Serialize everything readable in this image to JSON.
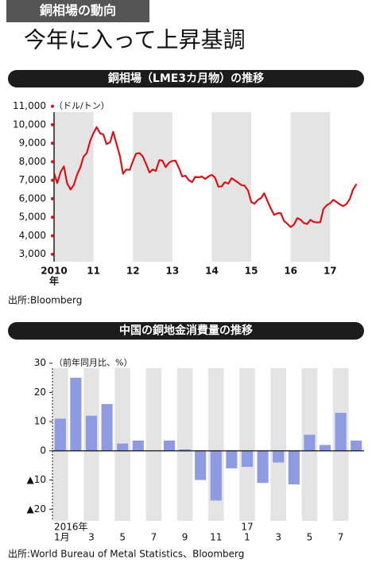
{
  "header": {
    "tag": "銅相場の動向",
    "title": "今年に入って上昇基調"
  },
  "chart_data": [
    {
      "type": "line",
      "title": "銅相場（LME3カ月物）の推移",
      "y_unit_label": "（ドル/トン）",
      "x_unit_label": "年",
      "x": [
        2010,
        2010.08,
        2010.17,
        2010.25,
        2010.33,
        2010.42,
        2010.5,
        2010.58,
        2010.67,
        2010.75,
        2010.83,
        2010.92,
        2011,
        2011.08,
        2011.17,
        2011.25,
        2011.33,
        2011.42,
        2011.5,
        2011.58,
        2011.67,
        2011.75,
        2011.83,
        2011.92,
        2012,
        2012.08,
        2012.17,
        2012.25,
        2012.33,
        2012.42,
        2012.5,
        2012.58,
        2012.67,
        2012.75,
        2012.83,
        2012.92,
        2013,
        2013.08,
        2013.17,
        2013.25,
        2013.33,
        2013.42,
        2013.5,
        2013.58,
        2013.67,
        2013.75,
        2013.83,
        2013.92,
        2014,
        2014.08,
        2014.17,
        2014.25,
        2014.33,
        2014.42,
        2014.5,
        2014.58,
        2014.67,
        2014.75,
        2014.83,
        2014.92,
        2015,
        2015.08,
        2015.17,
        2015.25,
        2015.33,
        2015.42,
        2015.5,
        2015.58,
        2015.67,
        2015.75,
        2015.83,
        2015.92,
        2016,
        2016.08,
        2016.17,
        2016.25,
        2016.33,
        2016.42,
        2016.5,
        2016.58,
        2016.67,
        2016.75,
        2016.83,
        2016.92,
        2017,
        2017.08,
        2017.17,
        2017.25,
        2017.33,
        2017.42,
        2017.5,
        2017.58,
        2017.67
      ],
      "values": [
        7400,
        6850,
        7460,
        7750,
        6840,
        6500,
        6740,
        7280,
        7710,
        8290,
        8470,
        9150,
        9550,
        9870,
        9530,
        9480,
        8960,
        9050,
        9620,
        9000,
        8300,
        7350,
        7580,
        7560,
        8040,
        8440,
        8470,
        8290,
        7900,
        7420,
        7580,
        7510,
        8090,
        8060,
        7710,
        7960,
        8050,
        8060,
        7650,
        7200,
        7250,
        7000,
        6900,
        7190,
        7160,
        7200,
        7070,
        7210,
        7290,
        7150,
        6650,
        6670,
        6890,
        6820,
        7110,
        7000,
        6870,
        6740,
        6710,
        6450,
        5830,
        5730,
        5940,
        6040,
        6300,
        5830,
        5460,
        5130,
        5220,
        5220,
        4800,
        4640,
        4470,
        4600,
        4950,
        4870,
        4690,
        4640,
        4860,
        4750,
        4720,
        4730,
        5450,
        5660,
        5750,
        5940,
        5820,
        5690,
        5600,
        5720,
        5990,
        6490,
        6800
      ],
      "color": "#d7141a",
      "xlim": [
        2010,
        2017.8
      ],
      "xticks": [
        {
          "value": 2010,
          "label": "2010"
        },
        {
          "value": 2011,
          "label": "11"
        },
        {
          "value": 2012,
          "label": "12"
        },
        {
          "value": 2013,
          "label": "13"
        },
        {
          "value": 2014,
          "label": "14"
        },
        {
          "value": 2015,
          "label": "15"
        },
        {
          "value": 2016,
          "label": "16"
        },
        {
          "value": 2017,
          "label": "17"
        }
      ],
      "ylim": [
        2600,
        11200
      ],
      "yticks": [
        {
          "value": 3000,
          "label": "3,000"
        },
        {
          "value": 4000,
          "label": "4,000"
        },
        {
          "value": 5000,
          "label": "5,000"
        },
        {
          "value": 6000,
          "label": "6,000"
        },
        {
          "value": 7000,
          "label": "7,000"
        },
        {
          "value": 8000,
          "label": "8,000"
        },
        {
          "value": 9000,
          "label": "9,000"
        },
        {
          "value": 10000,
          "label": "10,000"
        },
        {
          "value": 11000,
          "label": "11,000"
        }
      ],
      "source": "出所:Bloomberg"
    },
    {
      "type": "bar",
      "title": "中国の銅地金消費量の推移",
      "y_unit_label": "（前年同月比、%）",
      "x_group_labels": [
        "2016年",
        "17"
      ],
      "categories": [
        "1月",
        null,
        "3",
        null,
        "5",
        null,
        "7",
        null,
        "9",
        null,
        "11",
        null,
        "1",
        null,
        "3",
        null,
        "5",
        null,
        "7",
        null
      ],
      "values": [
        11,
        25,
        12,
        16,
        2.5,
        3.5,
        0,
        3.5,
        0.5,
        -10,
        -17,
        -6,
        -5.5,
        -11,
        -4,
        -11.5,
        5.5,
        2,
        13,
        3.5
      ],
      "color": "#8e9be0",
      "ylim": [
        -24,
        31
      ],
      "yticks": [
        {
          "value": -20,
          "label": "▲20"
        },
        {
          "value": -10,
          "label": "▲10"
        },
        0,
        10,
        20,
        30
      ],
      "source": "出所:World Bureau of Metal Statistics、Bloomberg"
    }
  ]
}
